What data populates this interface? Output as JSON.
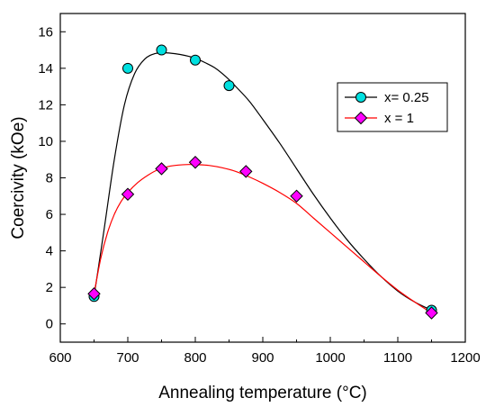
{
  "chart_data": {
    "type": "scatter",
    "xlabel": "Annealing temperature (°C)",
    "ylabel": "Coercivity (kOe)",
    "xlim": [
      600,
      1200
    ],
    "ylim": [
      -1,
      17
    ],
    "x_ticks": [
      600,
      700,
      800,
      900,
      1000,
      1100,
      1200
    ],
    "y_ticks": [
      0,
      2,
      4,
      6,
      8,
      10,
      12,
      14,
      16
    ],
    "grid": false,
    "legend_position": "right",
    "series": [
      {
        "name": "x= 0.25",
        "marker": "circle",
        "marker_color": "#00e0e0",
        "line_color": "#000000",
        "x": [
          650,
          700,
          750,
          800,
          850,
          1150
        ],
        "y": [
          1.5,
          14.0,
          15.0,
          14.45,
          13.05,
          0.75
        ],
        "fit_x": [
          650,
          665,
          680,
          695,
          710,
          725,
          740,
          755,
          770,
          785,
          800,
          815,
          830,
          845,
          860,
          880,
          900,
          925,
          950,
          975,
          1000,
          1025,
          1050,
          1075,
          1100,
          1125,
          1150
        ],
        "fit_y": [
          1.5,
          5.2,
          9.0,
          12.0,
          13.7,
          14.5,
          14.8,
          14.85,
          14.8,
          14.7,
          14.55,
          14.3,
          14.0,
          13.55,
          13.0,
          12.2,
          11.2,
          9.9,
          8.5,
          7.1,
          5.8,
          4.6,
          3.55,
          2.6,
          1.8,
          1.2,
          0.75
        ]
      },
      {
        "name": "x = 1",
        "marker": "diamond",
        "marker_color": "#ff00ff",
        "line_color": "#ff0000",
        "x": [
          650,
          700,
          750,
          800,
          875,
          950,
          1150
        ],
        "y": [
          1.65,
          7.1,
          8.5,
          8.85,
          8.35,
          7.0,
          0.6
        ],
        "fit_x": [
          650,
          660,
          670,
          680,
          690,
          700,
          715,
          730,
          745,
          760,
          775,
          790,
          805,
          820,
          840,
          860,
          880,
          900,
          925,
          950,
          975,
          1000,
          1025,
          1050,
          1075,
          1100,
          1125,
          1150
        ],
        "fit_y": [
          1.65,
          3.6,
          5.0,
          6.0,
          6.7,
          7.2,
          7.75,
          8.15,
          8.45,
          8.62,
          8.7,
          8.73,
          8.72,
          8.68,
          8.55,
          8.35,
          8.05,
          7.7,
          7.2,
          6.6,
          5.8,
          5.0,
          4.2,
          3.4,
          2.6,
          1.85,
          1.2,
          0.6
        ]
      }
    ]
  }
}
